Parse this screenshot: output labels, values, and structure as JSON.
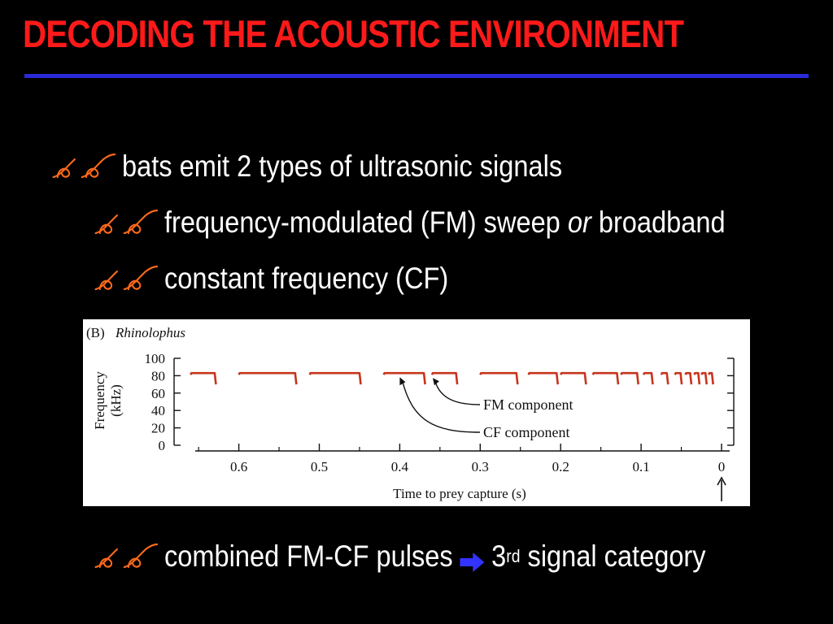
{
  "slide": {
    "title": "DECODING THE ACOUSTIC ENVIRONMENT",
    "accent_color": "#ff1a1a",
    "rule_color": "#2a2ad8",
    "bullet_icon": "double-swirl-icon",
    "bullet_icon_color": "#ff6a1a"
  },
  "bullets": [
    {
      "text": "bats emit 2 types of ultrasonic signals"
    },
    {
      "text_before": "frequency-modulated (FM) sweep ",
      "text_italic": "or",
      "text_after": " broadband"
    },
    {
      "text": "constant frequency (CF)"
    },
    {
      "text_before": "combined FM-CF pulses",
      "arrow_icon": "right-arrow-icon",
      "arrow_color": "#3333ff",
      "text_num": "3",
      "text_sup": "rd",
      "text_after": " signal category"
    }
  ],
  "chart_data": {
    "type": "line",
    "panel_label": "(B)",
    "title": "Rhinolophus",
    "xlabel": "Time to prey capture (s)",
    "ylabel_line1": "Frequency",
    "ylabel_line2": "(kHz)",
    "x_ticks": [
      "0.6",
      "0.5",
      "0.4",
      "0.3",
      "0.2",
      "0.1",
      "0"
    ],
    "y_ticks": [
      "100",
      "80",
      "60",
      "40",
      "20",
      "0"
    ],
    "xlim": [
      0.66,
      0
    ],
    "ylim": [
      0,
      100
    ],
    "grid": false,
    "series_color": "#c8341c",
    "cf_frequency_khz": 83,
    "fm_end_frequency_khz": 70,
    "pulses": [
      {
        "start": 0.66,
        "end": 0.63
      },
      {
        "start": 0.6,
        "end": 0.53
      },
      {
        "start": 0.512,
        "end": 0.45
      },
      {
        "start": 0.42,
        "end": 0.37
      },
      {
        "start": 0.36,
        "end": 0.33
      },
      {
        "start": 0.3,
        "end": 0.255
      },
      {
        "start": 0.24,
        "end": 0.205
      },
      {
        "start": 0.2,
        "end": 0.17
      },
      {
        "start": 0.16,
        "end": 0.13
      },
      {
        "start": 0.125,
        "end": 0.105
      },
      {
        "start": 0.097,
        "end": 0.087
      },
      {
        "start": 0.075,
        "end": 0.068
      },
      {
        "start": 0.058,
        "end": 0.051
      },
      {
        "start": 0.045,
        "end": 0.039
      },
      {
        "start": 0.034,
        "end": 0.029
      },
      {
        "start": 0.025,
        "end": 0.02
      },
      {
        "start": 0.016,
        "end": 0.012
      }
    ],
    "annotations": [
      {
        "label": "FM component"
      },
      {
        "label": "CF component"
      }
    ],
    "capture_marker_icon": "up-arrow-icon"
  }
}
